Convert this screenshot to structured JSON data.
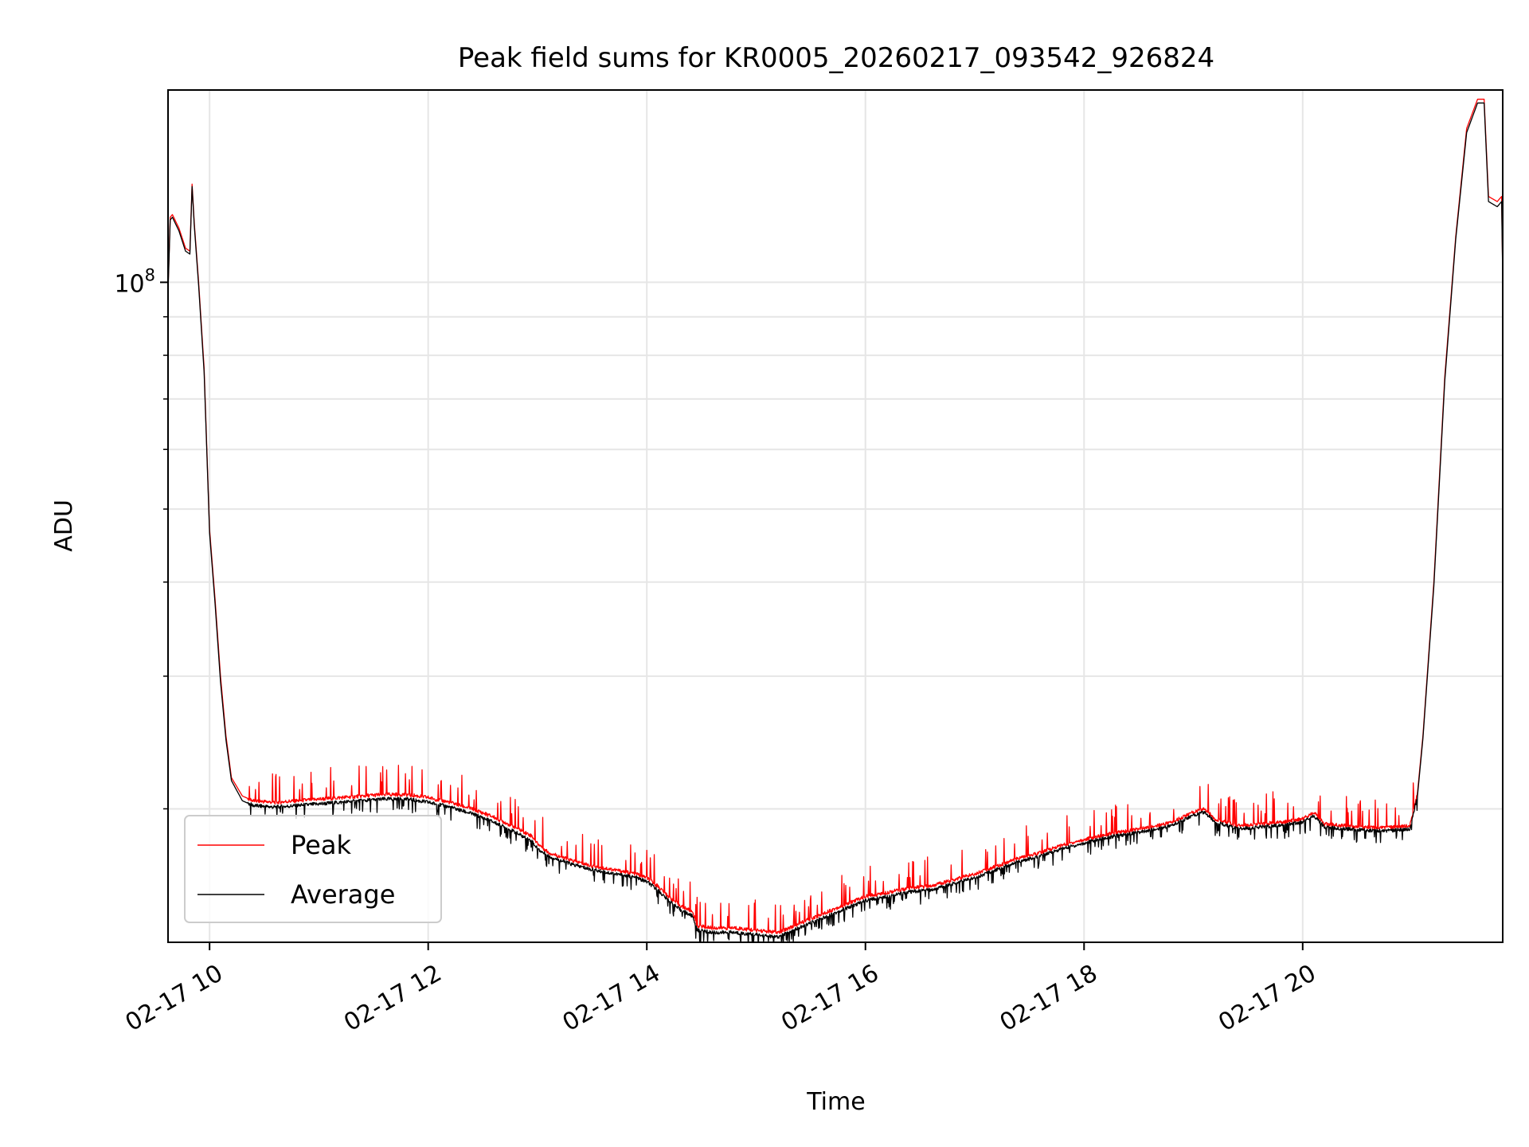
{
  "chart_data": {
    "type": "line",
    "title": "Peak field sums for KR0005_20260217_093542_926824",
    "xlabel": "Time",
    "ylabel": "ADU",
    "yscale": "log",
    "xlim": [
      9.62,
      21.83
    ],
    "ylim": [
      13300000,
      180000000
    ],
    "grid": true,
    "legend_position": "lower-left",
    "x_ticks": [
      {
        "value": 10,
        "label": "02-17 10"
      },
      {
        "value": 12,
        "label": "02-17 12"
      },
      {
        "value": 14,
        "label": "02-17 14"
      },
      {
        "value": 16,
        "label": "02-17 16"
      },
      {
        "value": 18,
        "label": "02-17 18"
      },
      {
        "value": 20,
        "label": "02-17 20"
      }
    ],
    "y_major_ticks": [
      {
        "value": 100000000,
        "base": "10",
        "exp": "8"
      }
    ],
    "y_minor_ticks": [
      20000000,
      30000000,
      40000000,
      50000000,
      60000000,
      70000000,
      80000000,
      90000000
    ],
    "series": [
      {
        "name": "Peak",
        "color": "#ff0000",
        "line_width": 1,
        "x": [
          9.62,
          9.64,
          9.66,
          9.72,
          9.78,
          9.82,
          9.84,
          9.86,
          9.9,
          9.95,
          10.0,
          10.05,
          10.1,
          10.15,
          10.2,
          10.3,
          10.4,
          10.6,
          10.8,
          11.0,
          11.2,
          11.4,
          11.6,
          11.8,
          12.0,
          12.2,
          12.4,
          12.6,
          12.8,
          12.95,
          13.0,
          13.1,
          13.3,
          13.5,
          13.7,
          13.9,
          14.0,
          14.1,
          14.2,
          14.3,
          14.42,
          14.46,
          14.6,
          14.8,
          15.0,
          15.2,
          15.4,
          15.6,
          15.8,
          16.0,
          16.2,
          16.4,
          16.6,
          16.8,
          17.0,
          17.2,
          17.4,
          17.6,
          17.8,
          18.0,
          18.2,
          18.4,
          18.6,
          18.8,
          19.0,
          19.1,
          19.2,
          19.4,
          19.6,
          19.8,
          20.0,
          20.1,
          20.2,
          20.4,
          20.6,
          20.8,
          20.98,
          21.0,
          21.05,
          21.1,
          21.2,
          21.3,
          21.4,
          21.5,
          21.6,
          21.62,
          21.66,
          21.7,
          21.78,
          21.82,
          21.83
        ],
        "y": [
          98000000,
          122000000,
          123000000,
          118000000,
          111000000,
          110000000,
          135000000,
          120000000,
          100000000,
          77000000,
          47000000,
          38000000,
          30000000,
          25000000,
          22000000,
          20800000,
          20500000,
          20400000,
          20500000,
          20600000,
          20700000,
          20800000,
          20900000,
          20900000,
          20700000,
          20400000,
          20000000,
          19500000,
          18900000,
          18400000,
          18000000,
          17500000,
          17100000,
          16800000,
          16600000,
          16400000,
          16200000,
          15800000,
          15300000,
          14900000,
          14600000,
          14000000,
          13900000,
          13900000,
          13800000,
          13700000,
          14100000,
          14500000,
          14900000,
          15300000,
          15500000,
          15700000,
          15800000,
          16100000,
          16400000,
          16800000,
          17200000,
          17500000,
          17900000,
          18200000,
          18500000,
          18700000,
          18900000,
          19200000,
          19800000,
          20000000,
          19400000,
          19000000,
          19100000,
          19200000,
          19400000,
          19800000,
          19100000,
          19000000,
          18900000,
          18900000,
          19000000,
          19500000,
          21000000,
          25000000,
          40000000,
          75000000,
          115000000,
          160000000,
          175000000,
          175000000,
          175000000,
          130000000,
          128000000,
          130000000,
          102000000
        ]
      },
      {
        "name": "Average",
        "color": "#000000",
        "line_width": 1,
        "x": [
          9.62,
          9.64,
          9.66,
          9.72,
          9.78,
          9.82,
          9.84,
          9.86,
          9.9,
          9.95,
          10.0,
          10.05,
          10.1,
          10.15,
          10.2,
          10.3,
          10.4,
          10.6,
          10.8,
          11.0,
          11.2,
          11.4,
          11.6,
          11.8,
          12.0,
          12.2,
          12.4,
          12.6,
          12.8,
          12.95,
          13.0,
          13.1,
          13.3,
          13.5,
          13.7,
          13.9,
          14.0,
          14.1,
          14.2,
          14.3,
          14.42,
          14.46,
          14.6,
          14.8,
          15.0,
          15.2,
          15.4,
          15.6,
          15.8,
          16.0,
          16.2,
          16.4,
          16.6,
          16.8,
          17.0,
          17.2,
          17.4,
          17.6,
          17.8,
          18.0,
          18.2,
          18.4,
          18.6,
          18.8,
          19.0,
          19.1,
          19.2,
          19.4,
          19.6,
          19.8,
          20.0,
          20.1,
          20.2,
          20.4,
          20.6,
          20.8,
          20.98,
          21.0,
          21.05,
          21.1,
          21.2,
          21.3,
          21.4,
          21.5,
          21.6,
          21.62,
          21.66,
          21.7,
          21.78,
          21.82,
          21.83
        ],
        "y": [
          97000000,
          121000000,
          122000000,
          117000000,
          110000000,
          109000000,
          134000000,
          119000000,
          99000000,
          76000000,
          46500000,
          37500000,
          29500000,
          24700000,
          21800000,
          20500000,
          20200000,
          20100000,
          20200000,
          20300000,
          20400000,
          20500000,
          20600000,
          20600000,
          20400000,
          20100000,
          19700000,
          19200000,
          18600000,
          18100000,
          17700000,
          17300000,
          16900000,
          16600000,
          16400000,
          16200000,
          16000000,
          15600000,
          15100000,
          14700000,
          14400000,
          13800000,
          13700000,
          13700000,
          13600000,
          13500000,
          13900000,
          14300000,
          14700000,
          15100000,
          15300000,
          15500000,
          15600000,
          15900000,
          16200000,
          16600000,
          17000000,
          17300000,
          17700000,
          18000000,
          18300000,
          18500000,
          18700000,
          19000000,
          19600000,
          19800000,
          19200000,
          18800000,
          18900000,
          19000000,
          19200000,
          19600000,
          18900000,
          18800000,
          18700000,
          18700000,
          18800000,
          19300000,
          20800000,
          24800000,
          39500000,
          74000000,
          114000000,
          158000000,
          173000000,
          173000000,
          173000000,
          128000000,
          126000000,
          128000000,
          101000000
        ]
      }
    ]
  }
}
